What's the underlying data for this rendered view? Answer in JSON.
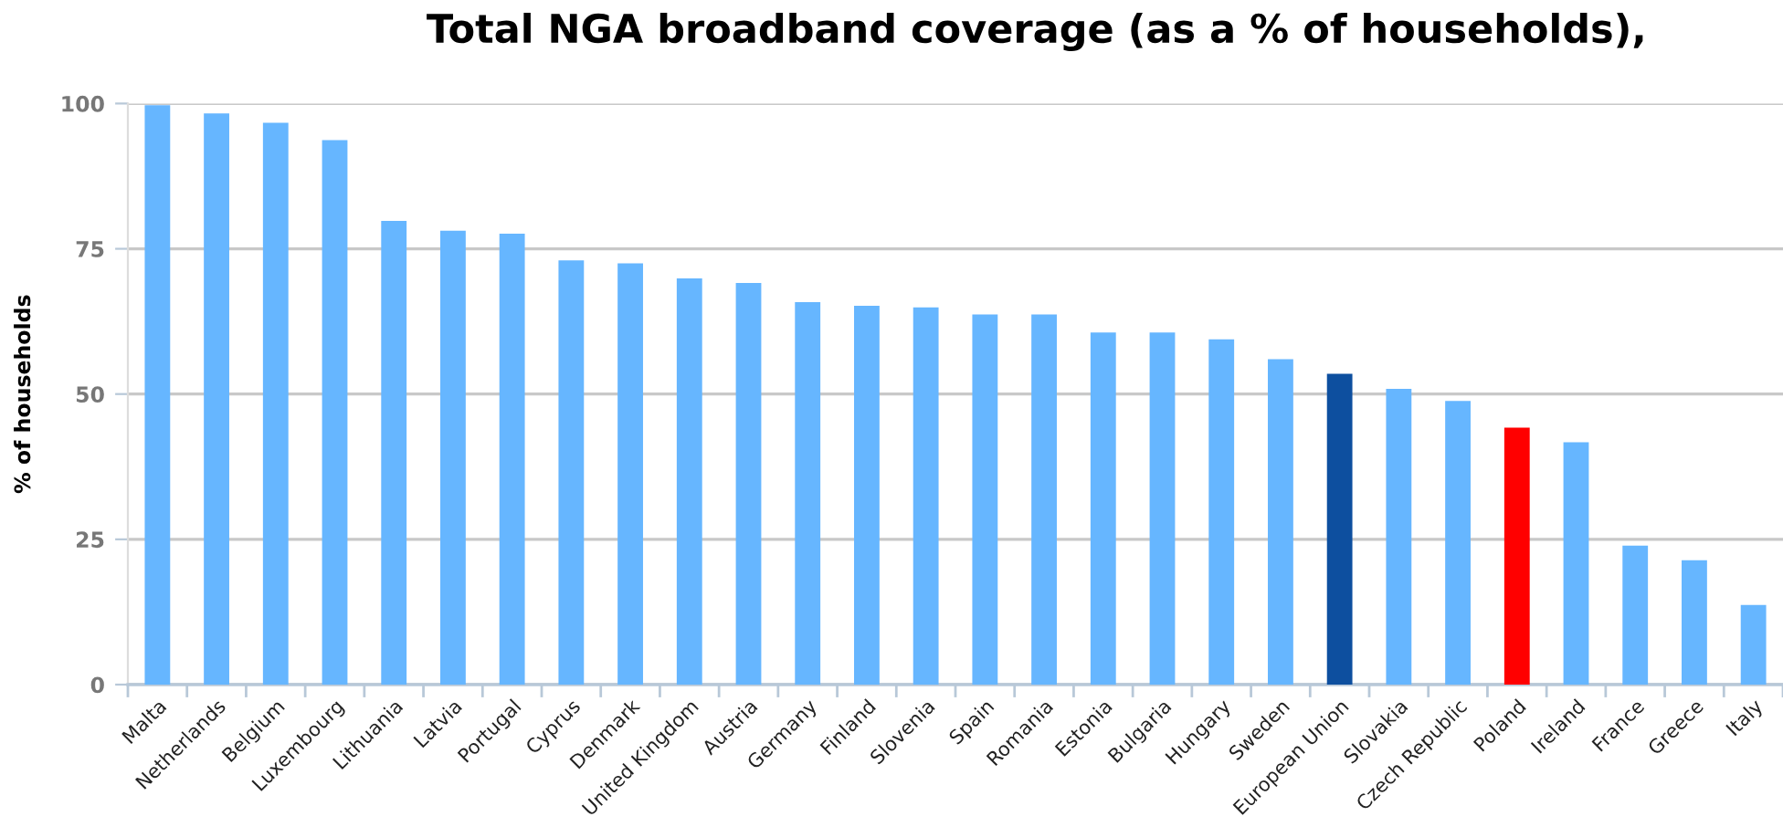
{
  "chart_data": {
    "type": "bar",
    "title": "Total NGA broadband coverage (as a % of households),",
    "ylabel": "% of households",
    "categories": [
      "Malta",
      "Netherlands",
      "Belgium",
      "Luxembourg",
      "Lithuania",
      "Latvia",
      "Portugal",
      "Cyprus",
      "Denmark",
      "United Kingdom",
      "Austria",
      "Germany",
      "Finland",
      "Slovenia",
      "Spain",
      "Romania",
      "Estonia",
      "Bulgaria",
      "Hungary",
      "Sweden",
      "European Union",
      "Slovakia",
      "Czech Republic",
      "Poland",
      "Ireland",
      "France",
      "Greece",
      "Italy"
    ],
    "values": [
      99.7,
      98.3,
      96.7,
      93.7,
      79.8,
      78.1,
      77.6,
      73.0,
      72.5,
      69.9,
      69.1,
      65.8,
      65.2,
      64.9,
      63.7,
      63.7,
      60.6,
      60.6,
      59.4,
      56.0,
      53.5,
      50.9,
      48.8,
      44.2,
      41.7,
      23.9,
      21.4,
      13.7
    ],
    "colors": [
      "#66b6ff",
      "#66b6ff",
      "#66b6ff",
      "#66b6ff",
      "#66b6ff",
      "#66b6ff",
      "#66b6ff",
      "#66b6ff",
      "#66b6ff",
      "#66b6ff",
      "#66b6ff",
      "#66b6ff",
      "#66b6ff",
      "#66b6ff",
      "#66b6ff",
      "#66b6ff",
      "#66b6ff",
      "#66b6ff",
      "#66b6ff",
      "#66b6ff",
      "#0d4f9f",
      "#66b6ff",
      "#66b6ff",
      "#ff0000",
      "#66b6ff",
      "#66b6ff",
      "#66b6ff",
      "#66b6ff"
    ],
    "ylim": [
      0,
      100
    ],
    "yticks": [
      0,
      25,
      50,
      75,
      100
    ],
    "grid": "y"
  }
}
